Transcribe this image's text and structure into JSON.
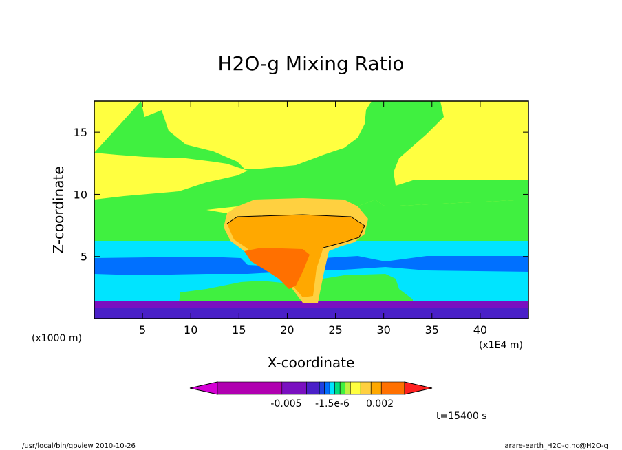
{
  "chart_data": {
    "type": "heatmap",
    "title": "H2O-g Mixing Ratio",
    "xlabel": "X-coordinate",
    "ylabel": "Z-coordinate",
    "x_unit_label": "(x1000 m)",
    "x_scale_label": "(x1E4 m)",
    "xlim": [
      0,
      45
    ],
    "ylim": [
      0,
      17.5
    ],
    "x_ticks": [
      5,
      10,
      15,
      20,
      25,
      30,
      35,
      40
    ],
    "y_ticks": [
      5,
      10,
      15
    ],
    "colorbar": {
      "tick_labels": [
        "-0.005",
        "-1.5e-6",
        "0.002"
      ],
      "colors": [
        "#d400d4",
        "#b000b0",
        "#7a10c0",
        "#4a20c8",
        "#2040e0",
        "#0070ff",
        "#00e4ff",
        "#00e080",
        "#40f040",
        "#c0f040",
        "#ffff40",
        "#ffd040",
        "#ffa800",
        "#ff7000",
        "#ff2020"
      ]
    },
    "annotation_time": "t=15400 s",
    "footer_left": "/usr/local/bin/gpview  2010-10-26",
    "footer_right": "arare-earth_H2O-g.nc@H2O-g",
    "layers": [
      {
        "name": "yellow",
        "color": "#ffff40"
      },
      {
        "name": "green",
        "color": "#40f040"
      },
      {
        "name": "cyan",
        "color": "#00e4ff"
      },
      {
        "name": "blue",
        "color": "#0070ff"
      },
      {
        "name": "purple",
        "color": "#7a10c0"
      },
      {
        "name": "orange-light",
        "color": "#ffd040"
      },
      {
        "name": "orange",
        "color": "#ffa800"
      },
      {
        "name": "dark-orange",
        "color": "#ff7000"
      }
    ]
  }
}
